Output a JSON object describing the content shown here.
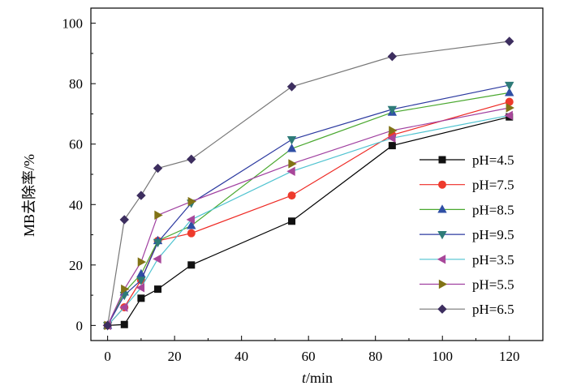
{
  "chart_data": {
    "type": "line",
    "xlabel_italic": "t",
    "xlabel_rest": "/min",
    "ylabel": "MB去除率/%",
    "xlim": [
      -5,
      130
    ],
    "ylim": [
      -5,
      105
    ],
    "xticks": [
      0,
      20,
      40,
      60,
      80,
      100,
      120
    ],
    "yticks": [
      0,
      20,
      40,
      60,
      80,
      100
    ],
    "grid": false,
    "legend_position": "right",
    "x": [
      0,
      5,
      10,
      15,
      25,
      55,
      85,
      120
    ],
    "series": [
      {
        "name": "pH=4.5",
        "color": "#000000",
        "marker": "square",
        "fill": "#111111",
        "values": [
          0,
          0.3,
          9,
          12,
          20,
          34.5,
          59.5,
          69
        ]
      },
      {
        "name": "pH=7.5",
        "color": "#ee2a24",
        "marker": "circle",
        "fill": "#ee3a2c",
        "values": [
          0,
          6,
          15,
          28,
          30.5,
          43,
          63,
          74
        ]
      },
      {
        "name": "pH=8.5",
        "color": "#4aa82f",
        "marker": "triangle-up",
        "fill": "#2f4fa5",
        "values": [
          0,
          11,
          17,
          28,
          33,
          58.5,
          70.5,
          77
        ]
      },
      {
        "name": "pH=9.5",
        "color": "#2c3aa0",
        "marker": "triangle-down",
        "fill": "#2e7b78",
        "values": [
          0,
          10,
          15,
          27.5,
          40.5,
          61.5,
          71.5,
          79.5
        ]
      },
      {
        "name": "pH=3.5",
        "color": "#4fc3d0",
        "marker": "triangle-left",
        "fill": "#a8479a",
        "values": [
          0,
          6,
          12.5,
          22,
          35,
          51,
          62,
          69.5
        ]
      },
      {
        "name": "pH=5.5",
        "color": "#a040a0",
        "marker": "triangle-right",
        "fill": "#817316",
        "values": [
          0,
          12,
          21,
          36.5,
          41,
          53.5,
          64.5,
          72
        ]
      },
      {
        "name": "pH=6.5",
        "color": "#777777",
        "marker": "diamond",
        "fill": "#3d2e5f",
        "values": [
          0,
          35,
          43,
          52,
          55,
          79,
          89,
          94
        ]
      }
    ]
  }
}
